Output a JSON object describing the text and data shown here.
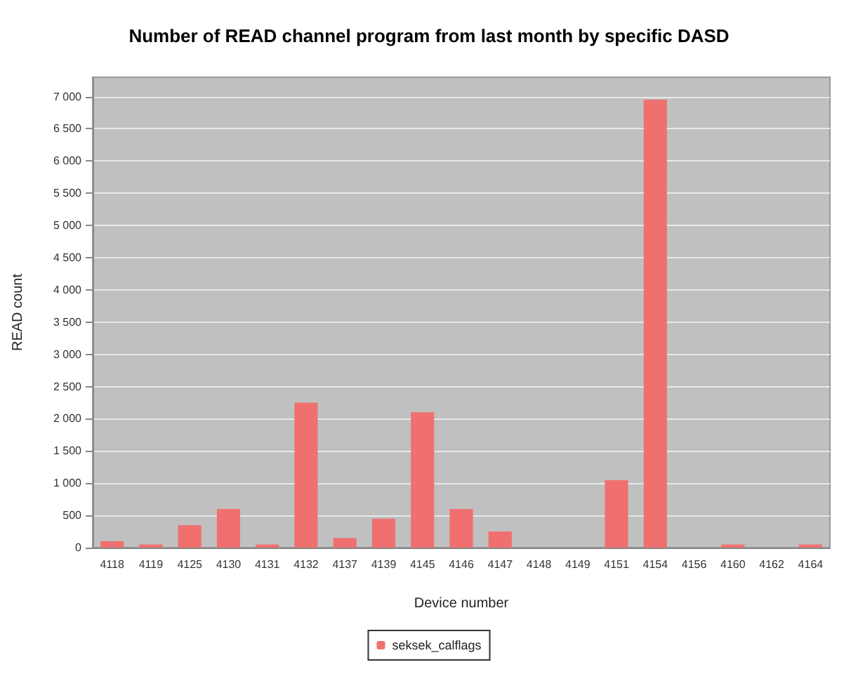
{
  "chart_data": {
    "type": "bar",
    "title": "Number of READ channel program from last month by specific DASD",
    "xlabel": "Device number",
    "ylabel": "READ count",
    "categories": [
      "4118",
      "4119",
      "4125",
      "4130",
      "4131",
      "4132",
      "4137",
      "4139",
      "4145",
      "4146",
      "4147",
      "4148",
      "4149",
      "4151",
      "4154",
      "4156",
      "4160",
      "4162",
      "4164"
    ],
    "series": [
      {
        "name": "seksek_calflags",
        "color": "#f07070",
        "values": [
          100,
          50,
          350,
          600,
          50,
          2250,
          150,
          450,
          2100,
          600,
          250,
          0,
          0,
          1050,
          6950,
          0,
          50,
          0,
          50
        ]
      }
    ],
    "ylim": [
      0,
      7300
    ],
    "yticks": [
      0,
      500,
      {
        "value": 1000,
        "label": "1 000"
      },
      {
        "value": 1500,
        "label": "1 500"
      },
      {
        "value": 2000,
        "label": "2 000"
      },
      {
        "value": 2500,
        "label": "2 500"
      },
      {
        "value": 3000,
        "label": "3 000"
      },
      {
        "value": 3500,
        "label": "3 500"
      },
      {
        "value": 4000,
        "label": "4 000"
      },
      {
        "value": 4500,
        "label": "4 500"
      },
      {
        "value": 5000,
        "label": "5 000"
      },
      {
        "value": 5500,
        "label": "5 500"
      },
      {
        "value": 6000,
        "label": "6 000"
      },
      {
        "value": 6500,
        "label": "6 500"
      },
      {
        "value": 7000,
        "label": "7 000"
      }
    ],
    "grid": "y",
    "legend": "bottom"
  }
}
